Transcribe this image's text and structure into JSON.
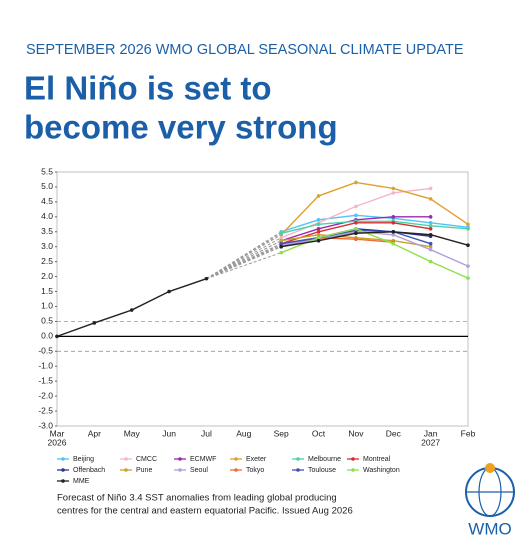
{
  "header": "SEPTEMBER 2026 WMO GLOBAL SEASONAL CLIMATE UPDATE",
  "headline": [
    "El Niño is set to",
    "become very strong"
  ],
  "chart_data": {
    "type": "line",
    "categories": [
      "Mar",
      "Apr",
      "May",
      "Jun",
      "Jul",
      "Aug",
      "Sep",
      "Oct",
      "Nov",
      "Dec",
      "Jan",
      "Feb"
    ],
    "category_years": [
      "2026",
      null,
      null,
      null,
      null,
      null,
      null,
      null,
      null,
      null,
      "2027",
      null
    ],
    "ylim": [
      -3,
      5.5
    ],
    "yticks": [
      {
        "value": -3,
        "label": "-3.0"
      },
      -2.5,
      {
        "value": -2,
        "label": "-2.0"
      },
      -1.5,
      {
        "value": -1,
        "label": "-1.0"
      },
      -0.5,
      {
        "value": 0,
        "label": "0.0"
      },
      0.5,
      {
        "value": 1,
        "label": "1.0"
      },
      1.5,
      {
        "value": 2,
        "label": "2.0"
      },
      2.5,
      {
        "value": 3,
        "label": "3.0"
      },
      3.5,
      {
        "value": 4,
        "label": "4.0"
      },
      4.5,
      {
        "value": 5,
        "label": "5.0"
      },
      5.5
    ],
    "reference_lines": [
      {
        "value": 0.5,
        "style": "dashed"
      },
      {
        "value": 0,
        "style": "solid"
      },
      {
        "value": -0.5,
        "style": "dashed"
      }
    ],
    "series": [
      {
        "name": "Beijing",
        "color": "#4fc3f7",
        "values": [
          null,
          null,
          null,
          null,
          null,
          null,
          3.5,
          3.9,
          4.05,
          3.95,
          3.8,
          3.65
        ]
      },
      {
        "name": "CMCC",
        "color": "#f4b6c8",
        "values": [
          null,
          null,
          null,
          null,
          null,
          null,
          3.3,
          3.8,
          4.35,
          4.8,
          4.95,
          null
        ]
      },
      {
        "name": "ECMWF",
        "color": "#9c27b0",
        "values": [
          null,
          null,
          null,
          null,
          null,
          null,
          3.2,
          3.6,
          3.9,
          4.0,
          4.0,
          null
        ]
      },
      {
        "name": "Exeter",
        "color": "#e0a030",
        "values": [
          null,
          null,
          null,
          null,
          null,
          null,
          3.4,
          4.7,
          5.15,
          4.95,
          4.6,
          3.75
        ]
      },
      {
        "name": "Melbourne",
        "color": "#4dd0a8",
        "values": [
          null,
          null,
          null,
          null,
          null,
          null,
          3.45,
          3.75,
          3.85,
          3.85,
          3.7,
          3.6
        ]
      },
      {
        "name": "Montreal",
        "color": "#d32f2f",
        "values": [
          null,
          null,
          null,
          null,
          null,
          null,
          3.1,
          3.5,
          3.8,
          3.8,
          3.6,
          null
        ]
      },
      {
        "name": "Offenbach",
        "color": "#283593",
        "values": [
          null,
          null,
          null,
          null,
          null,
          null,
          3.0,
          3.3,
          3.6,
          3.5,
          3.35,
          null
        ]
      },
      {
        "name": "Pune",
        "color": "#c9a227",
        "values": [
          null,
          null,
          null,
          null,
          null,
          null,
          3.2,
          3.4,
          3.3,
          3.2,
          3.0,
          null
        ]
      },
      {
        "name": "Seoul",
        "color": "#b39ddb",
        "values": [
          null,
          null,
          null,
          null,
          null,
          null,
          3.05,
          3.25,
          3.5,
          3.4,
          2.9,
          2.35
        ]
      },
      {
        "name": "Tokyo",
        "color": "#ef6c3a",
        "values": [
          null,
          null,
          null,
          null,
          null,
          null,
          3.1,
          3.3,
          3.25,
          3.15,
          null,
          null
        ]
      },
      {
        "name": "Toulouse",
        "color": "#3f51b5",
        "values": [
          null,
          null,
          null,
          null,
          null,
          null,
          3.1,
          3.3,
          3.55,
          3.5,
          3.1,
          null
        ]
      },
      {
        "name": "Washington",
        "color": "#8ee04a",
        "values": [
          null,
          null,
          null,
          null,
          null,
          null,
          2.8,
          3.3,
          3.6,
          3.1,
          2.5,
          1.95
        ]
      },
      {
        "name": "MME",
        "color": "#222222",
        "values": [
          0,
          0.45,
          0.88,
          1.5,
          1.93,
          null,
          3.0,
          3.2,
          3.45,
          3.5,
          3.4,
          3.05
        ]
      }
    ]
  },
  "caption": [
    "Forecast of Niño 3.4 SST anomalies from leading global producing",
    "centres for the central and eastern equatorial Pacific. Issued Aug 2026"
  ],
  "logo_text": "WMO"
}
